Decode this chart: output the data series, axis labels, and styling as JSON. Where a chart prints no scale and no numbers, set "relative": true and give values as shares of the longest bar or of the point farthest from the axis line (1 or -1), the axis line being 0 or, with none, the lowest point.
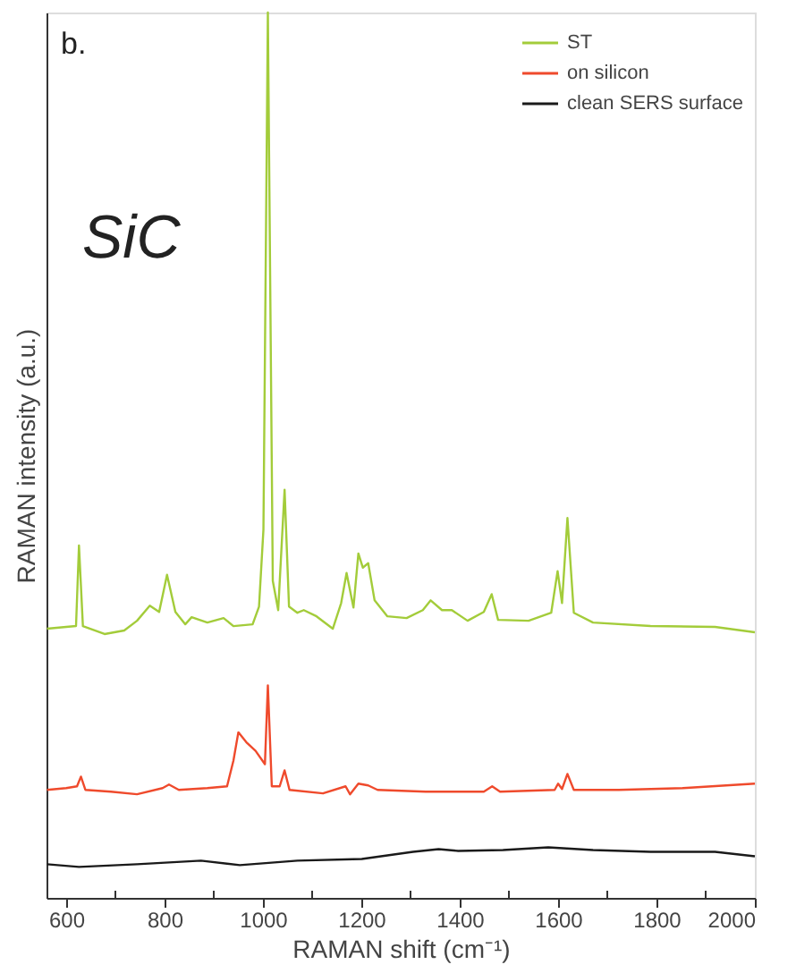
{
  "chart_data": {
    "type": "line",
    "relative": true,
    "xlabel": "RAMAN shift (cm⁻¹)",
    "ylabel": "RAMAN intensity (a.u.)",
    "xlim": [
      560,
      2000
    ],
    "xticks": [
      600,
      {
        "value": 700,
        "label": null
      },
      800,
      {
        "value": 900,
        "label": null
      },
      1000,
      {
        "value": 1100,
        "label": null
      },
      1200,
      {
        "value": 1300,
        "label": null
      },
      1400,
      {
        "value": 1500,
        "label": null
      },
      1600,
      {
        "value": 1700,
        "label": null
      },
      1800,
      {
        "value": 1900,
        "label": null
      },
      2000
    ],
    "tick_labels": "x",
    "grid": false,
    "legend": "top right",
    "line_style": "solid",
    "marker": "none",
    "annotations": [
      "b.",
      "SiC"
    ],
    "series": [
      {
        "name": "ST",
        "color": "#a3cc3a",
        "x": [
          561,
          600,
          620,
          626,
          634,
          678,
          718,
          744,
          770,
          789,
          805,
          822,
          842,
          855,
          887,
          920,
          940,
          979,
          992,
          1001,
          1010,
          1020,
          1031,
          1044,
          1053,
          1070,
          1083,
          1109,
          1142,
          1159,
          1170,
          1184,
          1194,
          1203,
          1214,
          1227,
          1253,
          1292,
          1325,
          1341,
          1364,
          1384,
          1416,
          1449,
          1465,
          1478,
          1540,
          1586,
          1599,
          1608,
          1619,
          1632,
          1671,
          1788,
          1919,
          2000
        ],
        "values": [
          0.304,
          0.306,
          0.307,
          0.398,
          0.307,
          0.298,
          0.302,
          0.313,
          0.33,
          0.323,
          0.365,
          0.323,
          0.309,
          0.317,
          0.311,
          0.316,
          0.307,
          0.309,
          0.329,
          0.416,
          1.0,
          0.358,
          0.325,
          0.461,
          0.329,
          0.322,
          0.325,
          0.318,
          0.304,
          0.333,
          0.367,
          0.328,
          0.389,
          0.373,
          0.378,
          0.336,
          0.318,
          0.316,
          0.325,
          0.336,
          0.325,
          0.325,
          0.313,
          0.323,
          0.343,
          0.314,
          0.313,
          0.322,
          0.369,
          0.333,
          0.429,
          0.322,
          0.311,
          0.307,
          0.306,
          0.3
        ]
      },
      {
        "name": "on silicon",
        "color": "#ef4a2c",
        "x": [
          561,
          600,
          622,
          630,
          639,
          691,
          744,
          796,
          809,
          829,
          887,
          927,
          940,
          950,
          966,
          985,
          1004,
          1010,
          1018,
          1034,
          1044,
          1054,
          1122,
          1168,
          1177,
          1194,
          1214,
          1233,
          1331,
          1449,
          1466,
          1482,
          1593,
          1600,
          1608,
          1619,
          1632,
          1723,
          1854,
          2000
        ],
        "values": [
          0.122,
          0.124,
          0.126,
          0.137,
          0.122,
          0.12,
          0.117,
          0.124,
          0.128,
          0.122,
          0.124,
          0.126,
          0.155,
          0.187,
          0.176,
          0.166,
          0.151,
          0.24,
          0.126,
          0.126,
          0.144,
          0.122,
          0.118,
          0.126,
          0.117,
          0.129,
          0.127,
          0.122,
          0.12,
          0.12,
          0.126,
          0.12,
          0.122,
          0.129,
          0.123,
          0.14,
          0.122,
          0.122,
          0.124,
          0.129
        ]
      },
      {
        "name": "clean SERS surface",
        "color": "#1a1a1a",
        "x": [
          561,
          626,
          744,
          874,
          953,
          1070,
          1201,
          1305,
          1357,
          1397,
          1488,
          1580,
          1671,
          1788,
          1919,
          2000
        ],
        "values": [
          0.038,
          0.035,
          0.038,
          0.042,
          0.037,
          0.042,
          0.044,
          0.052,
          0.055,
          0.053,
          0.054,
          0.057,
          0.054,
          0.052,
          0.052,
          0.047
        ]
      }
    ]
  }
}
